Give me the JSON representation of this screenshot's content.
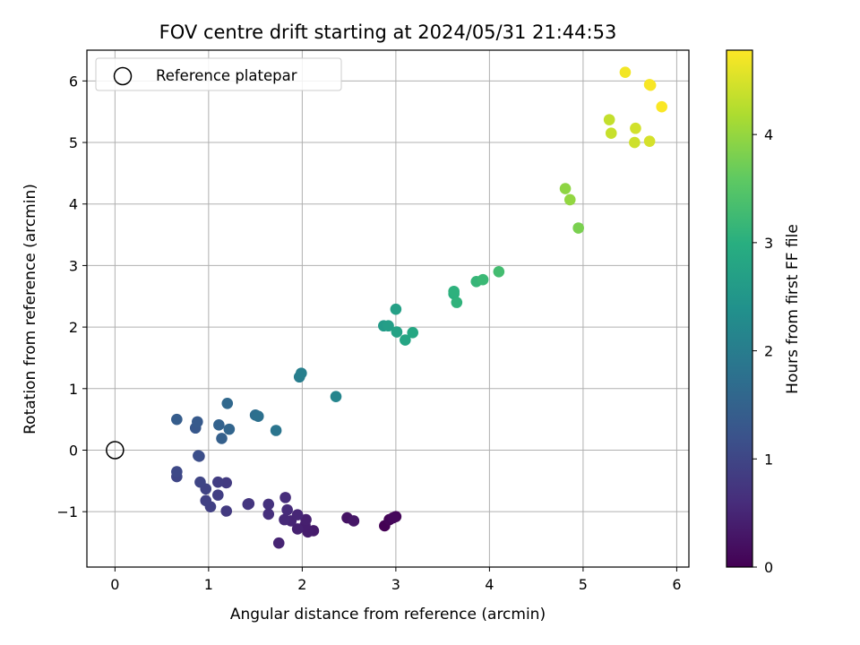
{
  "chart_data": {
    "type": "scatter",
    "title": "FOV centre drift starting at 2024/05/31 21:44:53",
    "xlabel": "Angular distance from reference (arcmin)",
    "ylabel": "Rotation from reference (arcmin)",
    "xlim": [
      -0.3,
      6.13
    ],
    "ylim": [
      -1.9,
      6.5
    ],
    "xticks": [
      0,
      1,
      2,
      3,
      4,
      5,
      6
    ],
    "yticks": [
      -1,
      0,
      1,
      2,
      3,
      4,
      5,
      6
    ],
    "xtick_labels": [
      "0",
      "1",
      "2",
      "3",
      "4",
      "5",
      "6"
    ],
    "ytick_labels": [
      "−1",
      "0",
      "1",
      "2",
      "3",
      "4",
      "5",
      "6"
    ],
    "grid": true,
    "legend": {
      "placement": "top-left",
      "label": "Reference platepar"
    },
    "reference_point": {
      "x": 0,
      "y": 0
    },
    "colorbar": {
      "label": "Hours from first FF file",
      "range": [
        0,
        4.78
      ],
      "ticks": [
        0,
        1,
        2,
        3,
        4
      ],
      "tick_labels": [
        "0",
        "1",
        "2",
        "3",
        "4"
      ],
      "colormap": "viridis"
    },
    "points": [
      {
        "x": 2.88,
        "y": -1.23,
        "h": 0.0
      },
      {
        "x": 2.93,
        "y": -1.13,
        "h": 0.05
      },
      {
        "x": 3.0,
        "y": -1.08,
        "h": 0.08
      },
      {
        "x": 2.97,
        "y": -1.1,
        "h": 0.1
      },
      {
        "x": 2.48,
        "y": -1.1,
        "h": 0.25
      },
      {
        "x": 2.55,
        "y": -1.15,
        "h": 0.28
      },
      {
        "x": 2.12,
        "y": -1.31,
        "h": 0.35
      },
      {
        "x": 2.06,
        "y": -1.33,
        "h": 0.38
      },
      {
        "x": 2.03,
        "y": -1.22,
        "h": 0.4
      },
      {
        "x": 2.04,
        "y": -1.13,
        "h": 0.42
      },
      {
        "x": 1.95,
        "y": -1.28,
        "h": 0.45
      },
      {
        "x": 1.75,
        "y": -1.51,
        "h": 0.48
      },
      {
        "x": 1.88,
        "y": -1.15,
        "h": 0.5
      },
      {
        "x": 1.95,
        "y": -1.05,
        "h": 0.52
      },
      {
        "x": 1.81,
        "y": -1.13,
        "h": 0.55
      },
      {
        "x": 1.84,
        "y": -0.97,
        "h": 0.58
      },
      {
        "x": 1.82,
        "y": -0.77,
        "h": 0.6
      },
      {
        "x": 1.64,
        "y": -1.04,
        "h": 0.65
      },
      {
        "x": 1.64,
        "y": -0.88,
        "h": 0.68
      },
      {
        "x": 1.43,
        "y": -0.87,
        "h": 0.72
      },
      {
        "x": 1.42,
        "y": -0.88,
        "h": 0.75
      },
      {
        "x": 1.19,
        "y": -0.99,
        "h": 0.8
      },
      {
        "x": 1.19,
        "y": -0.53,
        "h": 0.82
      },
      {
        "x": 1.1,
        "y": -0.52,
        "h": 0.85
      },
      {
        "x": 1.1,
        "y": -0.73,
        "h": 0.88
      },
      {
        "x": 1.02,
        "y": -0.92,
        "h": 0.9
      },
      {
        "x": 0.97,
        "y": -0.82,
        "h": 0.92
      },
      {
        "x": 0.97,
        "y": -0.63,
        "h": 0.95
      },
      {
        "x": 0.91,
        "y": -0.52,
        "h": 0.98
      },
      {
        "x": 0.66,
        "y": -0.43,
        "h": 1.0
      },
      {
        "x": 0.66,
        "y": -0.35,
        "h": 1.05
      },
      {
        "x": 0.9,
        "y": -0.1,
        "h": 1.1
      },
      {
        "x": 0.89,
        "y": -0.09,
        "h": 1.15
      },
      {
        "x": 0.86,
        "y": 0.36,
        "h": 1.3
      },
      {
        "x": 0.88,
        "y": 0.46,
        "h": 1.35
      },
      {
        "x": 0.66,
        "y": 0.5,
        "h": 1.4
      },
      {
        "x": 1.14,
        "y": 0.19,
        "h": 1.45
      },
      {
        "x": 1.11,
        "y": 0.41,
        "h": 1.5
      },
      {
        "x": 1.22,
        "y": 0.34,
        "h": 1.55
      },
      {
        "x": 1.2,
        "y": 0.76,
        "h": 1.6
      },
      {
        "x": 1.5,
        "y": 0.57,
        "h": 1.7
      },
      {
        "x": 1.53,
        "y": 0.55,
        "h": 1.75
      },
      {
        "x": 1.72,
        "y": 0.32,
        "h": 1.85
      },
      {
        "x": 1.97,
        "y": 1.19,
        "h": 2.0
      },
      {
        "x": 1.99,
        "y": 1.25,
        "h": 2.05
      },
      {
        "x": 2.36,
        "y": 0.87,
        "h": 2.15
      },
      {
        "x": 2.87,
        "y": 2.02,
        "h": 2.6
      },
      {
        "x": 2.92,
        "y": 2.02,
        "h": 2.65
      },
      {
        "x": 3.0,
        "y": 2.29,
        "h": 2.7
      },
      {
        "x": 3.01,
        "y": 1.92,
        "h": 2.75
      },
      {
        "x": 3.1,
        "y": 1.79,
        "h": 2.8
      },
      {
        "x": 3.18,
        "y": 1.91,
        "h": 2.85
      },
      {
        "x": 3.62,
        "y": 2.54,
        "h": 3.0
      },
      {
        "x": 3.62,
        "y": 2.58,
        "h": 3.05
      },
      {
        "x": 3.65,
        "y": 2.4,
        "h": 3.08
      },
      {
        "x": 3.86,
        "y": 2.74,
        "h": 3.15
      },
      {
        "x": 3.93,
        "y": 2.77,
        "h": 3.2
      },
      {
        "x": 4.1,
        "y": 2.9,
        "h": 3.3
      },
      {
        "x": 4.81,
        "y": 4.25,
        "h": 3.95
      },
      {
        "x": 4.86,
        "y": 4.07,
        "h": 3.98
      },
      {
        "x": 4.95,
        "y": 3.61,
        "h": 3.8
      },
      {
        "x": 5.28,
        "y": 5.37,
        "h": 4.35
      },
      {
        "x": 5.3,
        "y": 5.15,
        "h": 4.38
      },
      {
        "x": 5.55,
        "y": 5.0,
        "h": 4.42
      },
      {
        "x": 5.56,
        "y": 5.23,
        "h": 4.45
      },
      {
        "x": 5.71,
        "y": 5.02,
        "h": 4.48
      },
      {
        "x": 5.45,
        "y": 6.14,
        "h": 4.7
      },
      {
        "x": 5.71,
        "y": 5.94,
        "h": 4.72
      },
      {
        "x": 5.72,
        "y": 5.93,
        "h": 4.74
      },
      {
        "x": 5.84,
        "y": 5.58,
        "h": 4.76
      }
    ]
  }
}
